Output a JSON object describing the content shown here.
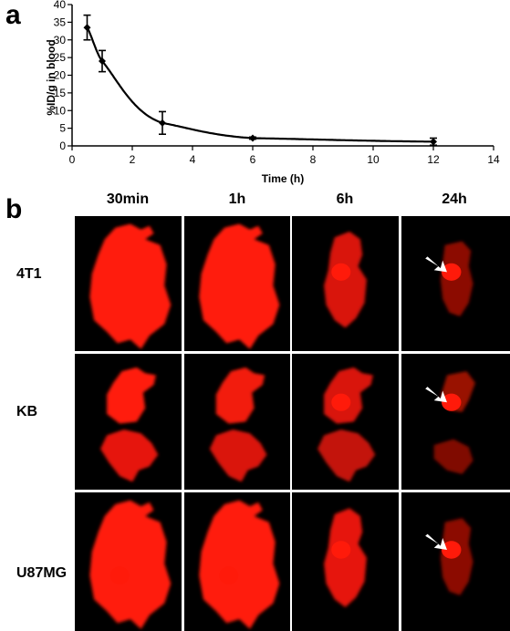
{
  "panels": {
    "a_letter": "a",
    "b_letter": "b"
  },
  "chart_data": {
    "type": "line",
    "title": "",
    "xlabel": "Time (h)",
    "ylabel": "%ID/g in blood",
    "xlim": [
      0,
      14
    ],
    "ylim": [
      0,
      40
    ],
    "xticks": [
      0,
      2,
      4,
      6,
      8,
      10,
      12,
      14
    ],
    "yticks": [
      0,
      5,
      10,
      15,
      20,
      25,
      30,
      35,
      40
    ],
    "grid": false,
    "series": [
      {
        "points": [
          {
            "x": 0.5,
            "y": 33.5,
            "err": 3.5
          },
          {
            "x": 1,
            "y": 24,
            "err": 3
          },
          {
            "x": 3,
            "y": 6.5,
            "err": 3.2
          },
          {
            "x": 6,
            "y": 2.2,
            "err": 0.3
          },
          {
            "x": 12,
            "y": 1.2,
            "err": 1
          }
        ]
      }
    ]
  },
  "imaging": {
    "columns": [
      "30min",
      "1h",
      "6h",
      "24h"
    ],
    "rows": [
      "4T1",
      "KB",
      "U87MG"
    ],
    "signal_color": "#ff1a0a",
    "arrow_color": "#ffffff"
  }
}
